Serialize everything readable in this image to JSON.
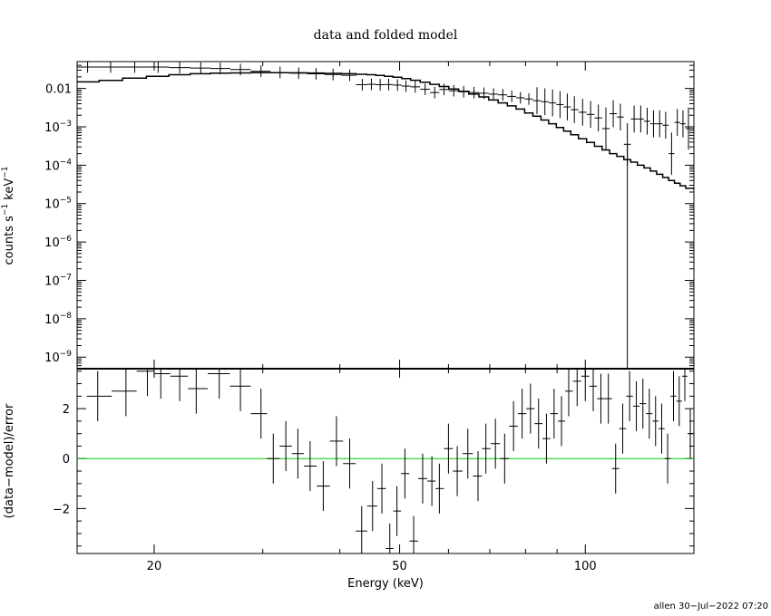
{
  "chart_data": [
    {
      "type": "scatter",
      "panel": "spectrum",
      "title": "data and folded model",
      "ylabel": "counts s-1 keV-1",
      "ylabel_parts": {
        "main": "counts s",
        "exp1": "−1",
        "mid": " keV",
        "exp2": "−1"
      },
      "xlabel": "",
      "xscale": "log",
      "yscale": "log",
      "xlim": [
        15,
        150
      ],
      "ylim": [
        5e-10,
        0.05
      ],
      "y_ticks": [
        {
          "value": 0.01,
          "label": "0.01"
        },
        {
          "value": 0.001,
          "base": "10",
          "exp": "−3"
        },
        {
          "value": 0.0001,
          "base": "10",
          "exp": "−4"
        },
        {
          "value": 1e-05,
          "base": "10",
          "exp": "−5"
        },
        {
          "value": 1e-06,
          "base": "10",
          "exp": "−6"
        },
        {
          "value": 1e-07,
          "base": "10",
          "exp": "−7"
        },
        {
          "value": 1e-08,
          "base": "10",
          "exp": "−8"
        },
        {
          "value": 1e-09,
          "base": "10",
          "exp": "−9"
        }
      ],
      "series": [
        {
          "kind": "data",
          "x": [
            15.6,
            17.0,
            18.6,
            20.3,
            22.0,
            23.8,
            25.6,
            27.6,
            29.8,
            32.0,
            34.3,
            36.6,
            39.0,
            41.5,
            43.5,
            45.0,
            46.5,
            48.0,
            49.6,
            51.2,
            53.0,
            55.0,
            57.0,
            59.0,
            61.2,
            63.5,
            66.0,
            68.5,
            71.0,
            73.5,
            76.0,
            78.5,
            81.0,
            83.5,
            86.0,
            88.5,
            91.0,
            93.5,
            96.0,
            99.0,
            102.0,
            105.0,
            108.0,
            111.0,
            114.0,
            117.0,
            120.0,
            123.0,
            126.0,
            129.0,
            132.0,
            135.0,
            138.0,
            141.0,
            144.0,
            147.0
          ],
          "y": [
            0.036,
            0.036,
            0.036,
            0.036,
            0.035,
            0.034,
            0.033,
            0.031,
            0.028,
            0.026,
            0.025,
            0.024,
            0.023,
            0.022,
            0.0125,
            0.0128,
            0.0125,
            0.0126,
            0.0122,
            0.0115,
            0.011,
            0.0095,
            0.0078,
            0.0094,
            0.0087,
            0.0082,
            0.0078,
            0.0075,
            0.0071,
            0.0068,
            0.0062,
            0.0057,
            0.0053,
            0.0048,
            0.0045,
            0.0042,
            0.0038,
            0.0033,
            0.0028,
            0.0024,
            0.0021,
            0.0017,
            0.0009,
            0.0022,
            0.0018,
            0.00035,
            0.0016,
            0.0016,
            0.0014,
            0.0012,
            0.0012,
            0.0011,
            0.0002,
            0.0013,
            0.0012,
            0.0009
          ]
        },
        {
          "kind": "model",
          "x": [
            15.6,
            17.0,
            18.6,
            20.3,
            22.0,
            23.8,
            25.6,
            27.6,
            29.8,
            32.0,
            34.3,
            36.6,
            39.0,
            41.5,
            43.5,
            45.0,
            46.5,
            48.0,
            49.6,
            51.2,
            53.0,
            55.0,
            57.0,
            59.0,
            61.2,
            63.5,
            66.0,
            68.5,
            71.0,
            73.5,
            76.0,
            78.5,
            81.0,
            83.5,
            86.0,
            88.5,
            91.0,
            93.5,
            96.0,
            99.0,
            102.0,
            105.0,
            108.0,
            111.0,
            114.0,
            117.0,
            120.0,
            123.0,
            126.0,
            129.0,
            132.0,
            135.0,
            138.0,
            141.0,
            144.0,
            147.0
          ],
          "y": [
            0.0148,
            0.0162,
            0.0185,
            0.0206,
            0.0228,
            0.0241,
            0.0249,
            0.0254,
            0.0257,
            0.0257,
            0.0255,
            0.0252,
            0.0247,
            0.0241,
            0.0234,
            0.0227,
            0.0219,
            0.0207,
            0.0195,
            0.018,
            0.0163,
            0.0145,
            0.0128,
            0.0112,
            0.0097,
            0.0084,
            0.0071,
            0.006,
            0.005,
            0.0042,
            0.0035,
            0.0029,
            0.0023,
            0.0019,
            0.0015,
            0.0012,
            0.00096,
            0.00077,
            0.00062,
            0.00049,
            0.00039,
            0.00031,
            0.00025,
            0.0002,
            0.00017,
            0.00014,
            0.00012,
            0.0001,
            8.5e-05,
            7e-05,
            5.8e-05,
            4.8e-05,
            4e-05,
            3.4e-05,
            2.9e-05,
            2.5e-05
          ]
        }
      ]
    },
    {
      "type": "scatter",
      "panel": "residuals",
      "ylabel": "(data−model)/error",
      "xlabel": "Energy (keV)",
      "xscale": "log",
      "xlim": [
        15,
        150
      ],
      "ylim": [
        -3.8,
        3.6
      ],
      "reference_line": {
        "y": 0,
        "color": "#00cc00"
      },
      "x_ticks": [
        {
          "value": 20,
          "label": "20"
        },
        {
          "value": 50,
          "label": "50"
        },
        {
          "value": 100,
          "label": "100"
        }
      ],
      "y_ticks": [
        {
          "value": 2,
          "label": "2"
        },
        {
          "value": 0,
          "label": "0"
        },
        {
          "value": -2,
          "label": "−2"
        }
      ],
      "series": [
        {
          "kind": "residuals",
          "x": [
            16.2,
            18.0,
            19.5,
            20.5,
            22.0,
            23.4,
            25.5,
            27.6,
            29.8,
            31.2,
            32.7,
            34.2,
            35.8,
            37.6,
            39.5,
            41.5,
            43.4,
            45.2,
            46.8,
            48.2,
            49.5,
            51.0,
            52.7,
            54.5,
            56.4,
            58.0,
            60.0,
            62.0,
            64.5,
            67.0,
            69.0,
            71.5,
            74.0,
            76.5,
            79.0,
            81.5,
            84.0,
            86.5,
            89.0,
            91.5,
            94.0,
            97.0,
            100.0,
            103.0,
            106.0,
            109.0,
            112.0,
            115.0,
            118.0,
            121.0,
            124.0,
            127.0,
            130.0,
            133.0,
            136.0,
            139.0,
            142.0,
            145.0,
            148.0
          ],
          "y": [
            2.5,
            2.7,
            3.5,
            3.4,
            3.3,
            2.8,
            3.4,
            2.9,
            1.8,
            0.0,
            0.5,
            0.2,
            -0.3,
            -1.1,
            0.7,
            -0.2,
            -2.9,
            -1.9,
            -1.2,
            -3.6,
            -2.1,
            -0.6,
            -3.3,
            -0.8,
            -0.9,
            -1.2,
            0.4,
            -0.5,
            0.2,
            -0.7,
            0.4,
            0.6,
            0.0,
            1.3,
            1.8,
            2.0,
            1.4,
            0.8,
            1.8,
            1.5,
            2.7,
            3.1,
            3.3,
            2.9,
            2.4,
            2.4,
            -0.4,
            1.2,
            2.5,
            2.1,
            2.2,
            1.8,
            1.5,
            1.2,
            0.0,
            2.5,
            2.3,
            3.3,
            1.0
          ]
        }
      ]
    }
  ],
  "footer": {
    "stamp": "allen 30−Jul−2022 07:20"
  }
}
